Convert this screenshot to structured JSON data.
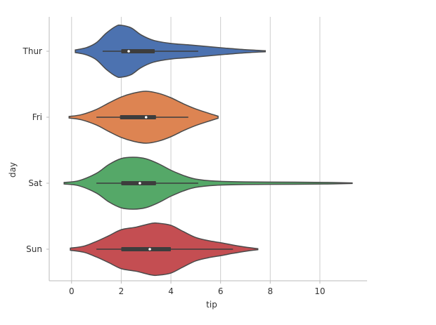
{
  "chart_data": {
    "type": "violin",
    "orientation": "horizontal",
    "xlabel": "tip",
    "ylabel": "day",
    "xlim": [
      -0.9,
      11.9
    ],
    "xticks": [
      0,
      2,
      4,
      6,
      8,
      10
    ],
    "grid": "vertical",
    "categories": [
      "Thur",
      "Fri",
      "Sat",
      "Sun"
    ],
    "series": [
      {
        "category": "Thur",
        "color": "#4c72b0",
        "range": [
          0.15,
          7.8
        ],
        "whisker": [
          1.25,
          5.1
        ],
        "box": [
          2.0,
          3.35
        ],
        "median": 2.3,
        "density": [
          [
            0.15,
            0.05
          ],
          [
            0.6,
            0.14
          ],
          [
            1.0,
            0.33
          ],
          [
            1.4,
            0.7
          ],
          [
            1.8,
            0.97
          ],
          [
            2.0,
            1.0
          ],
          [
            2.4,
            0.9
          ],
          [
            2.8,
            0.63
          ],
          [
            3.3,
            0.42
          ],
          [
            4.0,
            0.3
          ],
          [
            4.8,
            0.24
          ],
          [
            5.5,
            0.18
          ],
          [
            6.2,
            0.12
          ],
          [
            7.0,
            0.06
          ],
          [
            7.8,
            0.02
          ]
        ]
      },
      {
        "category": "Fri",
        "color": "#dd8452",
        "range": [
          -0.1,
          5.9
        ],
        "whisker": [
          1.0,
          4.7
        ],
        "box": [
          1.95,
          3.4
        ],
        "median": 3.0,
        "density": [
          [
            -0.1,
            0.03
          ],
          [
            0.4,
            0.1
          ],
          [
            1.0,
            0.3
          ],
          [
            1.5,
            0.55
          ],
          [
            2.0,
            0.78
          ],
          [
            2.5,
            0.93
          ],
          [
            3.0,
            1.0
          ],
          [
            3.5,
            0.92
          ],
          [
            4.0,
            0.75
          ],
          [
            4.5,
            0.52
          ],
          [
            5.0,
            0.32
          ],
          [
            5.5,
            0.16
          ],
          [
            5.9,
            0.04
          ]
        ]
      },
      {
        "category": "Sat",
        "color": "#55a868",
        "range": [
          -0.3,
          11.3
        ],
        "whisker": [
          1.0,
          5.1
        ],
        "box": [
          2.0,
          3.4
        ],
        "median": 2.75,
        "density": [
          [
            -0.3,
            0.03
          ],
          [
            0.3,
            0.1
          ],
          [
            1.0,
            0.38
          ],
          [
            1.5,
            0.72
          ],
          [
            2.0,
            0.95
          ],
          [
            2.5,
            1.0
          ],
          [
            3.0,
            0.94
          ],
          [
            3.5,
            0.75
          ],
          [
            4.0,
            0.5
          ],
          [
            4.5,
            0.3
          ],
          [
            5.0,
            0.16
          ],
          [
            5.8,
            0.08
          ],
          [
            7.0,
            0.05
          ],
          [
            9.0,
            0.04
          ],
          [
            10.3,
            0.03
          ],
          [
            11.3,
            0.01
          ]
        ]
      },
      {
        "category": "Sun",
        "color": "#c44e52",
        "range": [
          -0.05,
          7.5
        ],
        "whisker": [
          1.0,
          6.5
        ],
        "box": [
          2.0,
          4.0
        ],
        "median": 3.15,
        "density": [
          [
            -0.05,
            0.04
          ],
          [
            0.5,
            0.12
          ],
          [
            1.0,
            0.3
          ],
          [
            1.5,
            0.52
          ],
          [
            2.0,
            0.75
          ],
          [
            2.6,
            0.85
          ],
          [
            3.2,
            0.99
          ],
          [
            3.5,
            1.0
          ],
          [
            4.0,
            0.92
          ],
          [
            4.5,
            0.68
          ],
          [
            5.0,
            0.45
          ],
          [
            5.5,
            0.33
          ],
          [
            6.0,
            0.25
          ],
          [
            6.5,
            0.16
          ],
          [
            7.0,
            0.08
          ],
          [
            7.5,
            0.02
          ]
        ]
      }
    ]
  }
}
